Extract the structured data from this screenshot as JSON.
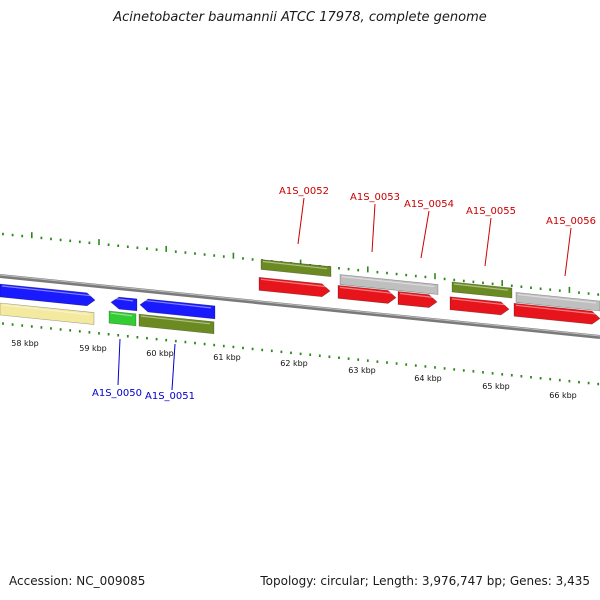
{
  "title": "Acinetobacter baumannii ATCC 17978, complete genome",
  "footer": {
    "accession": "Accession: NC_009085",
    "summary": "Topology: circular; Length: 3,976,747 bp; Genes: 3,435"
  },
  "colors": {
    "forward_gene": "#e8141b",
    "reverse_gene": "#1a1aff",
    "label_forward": "#cc0000",
    "label_reverse": "#0000cc",
    "cds_olive": "#6b8a22",
    "cds_green": "#33cc33",
    "cds_grey": "#bfbfbf",
    "cds_pale": "#f3eaa0",
    "tick": "#2a8a1a",
    "backbone": "#777777"
  },
  "scale": {
    "labels": [
      "58 kbp",
      "59 kbp",
      "60 kbp",
      "61 kbp",
      "62 kbp",
      "63 kbp",
      "64 kbp",
      "65 kbp",
      "66 kbp"
    ]
  },
  "genes": {
    "forward": [
      {
        "label": "A1S_0052"
      },
      {
        "label": "A1S_0053"
      },
      {
        "label": "A1S_0054"
      },
      {
        "label": "A1S_0055"
      },
      {
        "label": "A1S_0056"
      }
    ],
    "reverse": [
      {
        "label": "A1S_0050"
      },
      {
        "label": "A1S_0051"
      }
    ]
  }
}
